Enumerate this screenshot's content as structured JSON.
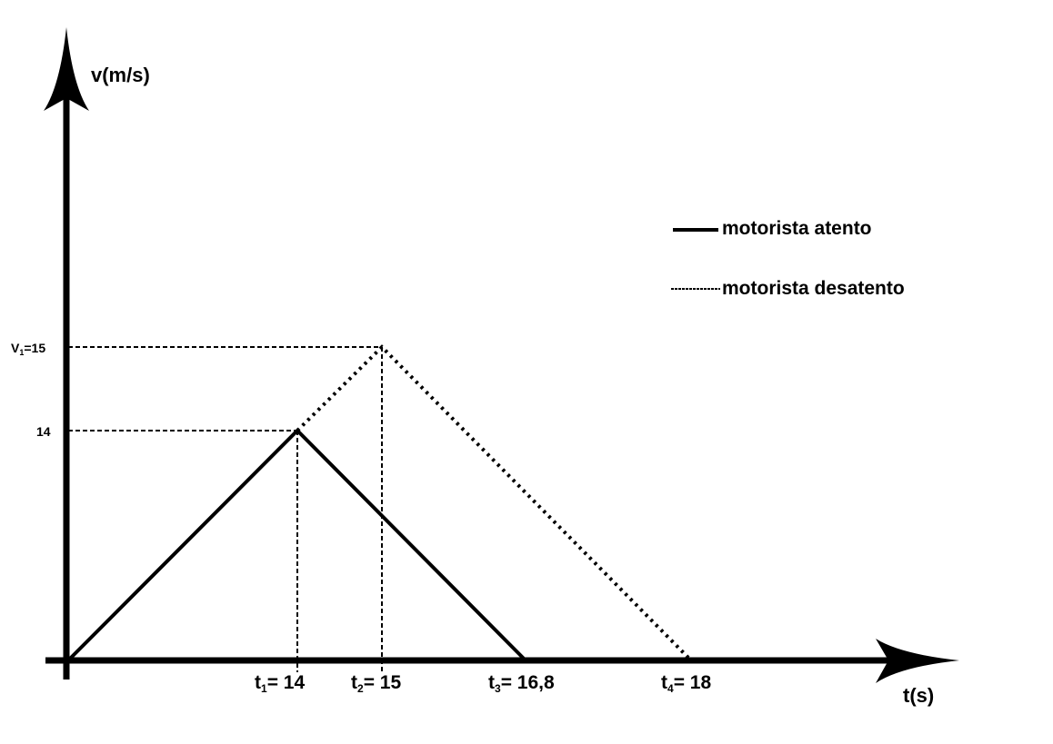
{
  "axes": {
    "y_label": "v(m/s)",
    "x_label": "t(s)"
  },
  "y_labels": [
    {
      "symbol": "V",
      "subscript": "1",
      "text": "=15"
    },
    {
      "text": "14"
    }
  ],
  "x_labels": [
    {
      "symbol": "t",
      "subscript": "1",
      "text": "= 14"
    },
    {
      "symbol": "t",
      "subscript": "2",
      "text": "= 15"
    },
    {
      "symbol": "t",
      "subscript": "3",
      "text": "= 16,8"
    },
    {
      "symbol": "t",
      "subscript": "4",
      "text": "= 18"
    }
  ],
  "legend": [
    "motorista atento",
    "motorista desatento"
  ]
}
